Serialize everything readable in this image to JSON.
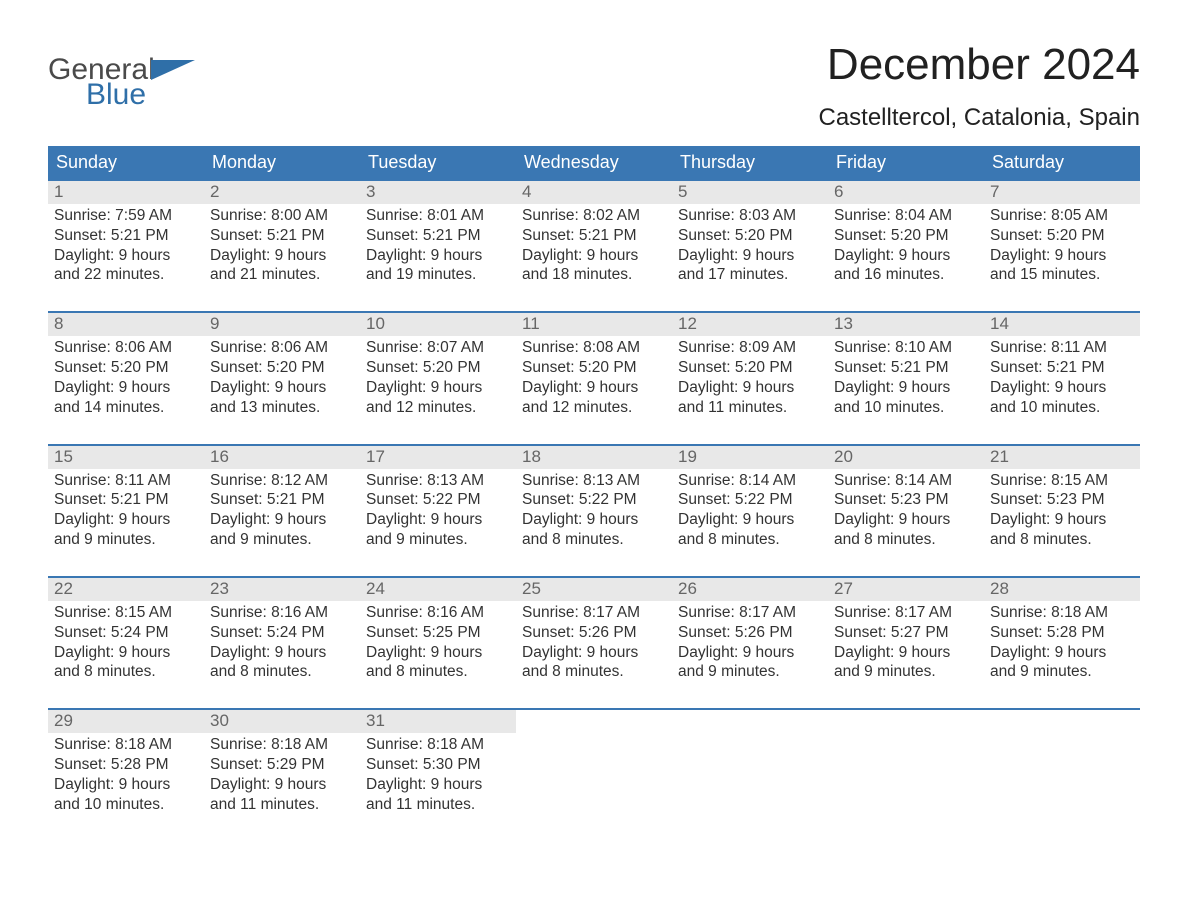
{
  "logo": {
    "general": "General",
    "blue": "Blue",
    "accent_color": "#2f6fa8"
  },
  "title": "December 2024",
  "location": "Castelltercol, Catalonia, Spain",
  "header_bg": "#3a77b3",
  "daynum_bg": "#e8e8e8",
  "text_color": "#333333",
  "border_color": "#3a77b3",
  "weekdays": [
    "Sunday",
    "Monday",
    "Tuesday",
    "Wednesday",
    "Thursday",
    "Friday",
    "Saturday"
  ],
  "weeks": [
    [
      {
        "n": "1",
        "sunrise": "Sunrise: 7:59 AM",
        "sunset": "Sunset: 5:21 PM",
        "d1": "Daylight: 9 hours",
        "d2": "and 22 minutes."
      },
      {
        "n": "2",
        "sunrise": "Sunrise: 8:00 AM",
        "sunset": "Sunset: 5:21 PM",
        "d1": "Daylight: 9 hours",
        "d2": "and 21 minutes."
      },
      {
        "n": "3",
        "sunrise": "Sunrise: 8:01 AM",
        "sunset": "Sunset: 5:21 PM",
        "d1": "Daylight: 9 hours",
        "d2": "and 19 minutes."
      },
      {
        "n": "4",
        "sunrise": "Sunrise: 8:02 AM",
        "sunset": "Sunset: 5:21 PM",
        "d1": "Daylight: 9 hours",
        "d2": "and 18 minutes."
      },
      {
        "n": "5",
        "sunrise": "Sunrise: 8:03 AM",
        "sunset": "Sunset: 5:20 PM",
        "d1": "Daylight: 9 hours",
        "d2": "and 17 minutes."
      },
      {
        "n": "6",
        "sunrise": "Sunrise: 8:04 AM",
        "sunset": "Sunset: 5:20 PM",
        "d1": "Daylight: 9 hours",
        "d2": "and 16 minutes."
      },
      {
        "n": "7",
        "sunrise": "Sunrise: 8:05 AM",
        "sunset": "Sunset: 5:20 PM",
        "d1": "Daylight: 9 hours",
        "d2": "and 15 minutes."
      }
    ],
    [
      {
        "n": "8",
        "sunrise": "Sunrise: 8:06 AM",
        "sunset": "Sunset: 5:20 PM",
        "d1": "Daylight: 9 hours",
        "d2": "and 14 minutes."
      },
      {
        "n": "9",
        "sunrise": "Sunrise: 8:06 AM",
        "sunset": "Sunset: 5:20 PM",
        "d1": "Daylight: 9 hours",
        "d2": "and 13 minutes."
      },
      {
        "n": "10",
        "sunrise": "Sunrise: 8:07 AM",
        "sunset": "Sunset: 5:20 PM",
        "d1": "Daylight: 9 hours",
        "d2": "and 12 minutes."
      },
      {
        "n": "11",
        "sunrise": "Sunrise: 8:08 AM",
        "sunset": "Sunset: 5:20 PM",
        "d1": "Daylight: 9 hours",
        "d2": "and 12 minutes."
      },
      {
        "n": "12",
        "sunrise": "Sunrise: 8:09 AM",
        "sunset": "Sunset: 5:20 PM",
        "d1": "Daylight: 9 hours",
        "d2": "and 11 minutes."
      },
      {
        "n": "13",
        "sunrise": "Sunrise: 8:10 AM",
        "sunset": "Sunset: 5:21 PM",
        "d1": "Daylight: 9 hours",
        "d2": "and 10 minutes."
      },
      {
        "n": "14",
        "sunrise": "Sunrise: 8:11 AM",
        "sunset": "Sunset: 5:21 PM",
        "d1": "Daylight: 9 hours",
        "d2": "and 10 minutes."
      }
    ],
    [
      {
        "n": "15",
        "sunrise": "Sunrise: 8:11 AM",
        "sunset": "Sunset: 5:21 PM",
        "d1": "Daylight: 9 hours",
        "d2": "and 9 minutes."
      },
      {
        "n": "16",
        "sunrise": "Sunrise: 8:12 AM",
        "sunset": "Sunset: 5:21 PM",
        "d1": "Daylight: 9 hours",
        "d2": "and 9 minutes."
      },
      {
        "n": "17",
        "sunrise": "Sunrise: 8:13 AM",
        "sunset": "Sunset: 5:22 PM",
        "d1": "Daylight: 9 hours",
        "d2": "and 9 minutes."
      },
      {
        "n": "18",
        "sunrise": "Sunrise: 8:13 AM",
        "sunset": "Sunset: 5:22 PM",
        "d1": "Daylight: 9 hours",
        "d2": "and 8 minutes."
      },
      {
        "n": "19",
        "sunrise": "Sunrise: 8:14 AM",
        "sunset": "Sunset: 5:22 PM",
        "d1": "Daylight: 9 hours",
        "d2": "and 8 minutes."
      },
      {
        "n": "20",
        "sunrise": "Sunrise: 8:14 AM",
        "sunset": "Sunset: 5:23 PM",
        "d1": "Daylight: 9 hours",
        "d2": "and 8 minutes."
      },
      {
        "n": "21",
        "sunrise": "Sunrise: 8:15 AM",
        "sunset": "Sunset: 5:23 PM",
        "d1": "Daylight: 9 hours",
        "d2": "and 8 minutes."
      }
    ],
    [
      {
        "n": "22",
        "sunrise": "Sunrise: 8:15 AM",
        "sunset": "Sunset: 5:24 PM",
        "d1": "Daylight: 9 hours",
        "d2": "and 8 minutes."
      },
      {
        "n": "23",
        "sunrise": "Sunrise: 8:16 AM",
        "sunset": "Sunset: 5:24 PM",
        "d1": "Daylight: 9 hours",
        "d2": "and 8 minutes."
      },
      {
        "n": "24",
        "sunrise": "Sunrise: 8:16 AM",
        "sunset": "Sunset: 5:25 PM",
        "d1": "Daylight: 9 hours",
        "d2": "and 8 minutes."
      },
      {
        "n": "25",
        "sunrise": "Sunrise: 8:17 AM",
        "sunset": "Sunset: 5:26 PM",
        "d1": "Daylight: 9 hours",
        "d2": "and 8 minutes."
      },
      {
        "n": "26",
        "sunrise": "Sunrise: 8:17 AM",
        "sunset": "Sunset: 5:26 PM",
        "d1": "Daylight: 9 hours",
        "d2": "and 9 minutes."
      },
      {
        "n": "27",
        "sunrise": "Sunrise: 8:17 AM",
        "sunset": "Sunset: 5:27 PM",
        "d1": "Daylight: 9 hours",
        "d2": "and 9 minutes."
      },
      {
        "n": "28",
        "sunrise": "Sunrise: 8:18 AM",
        "sunset": "Sunset: 5:28 PM",
        "d1": "Daylight: 9 hours",
        "d2": "and 9 minutes."
      }
    ],
    [
      {
        "n": "29",
        "sunrise": "Sunrise: 8:18 AM",
        "sunset": "Sunset: 5:28 PM",
        "d1": "Daylight: 9 hours",
        "d2": "and 10 minutes."
      },
      {
        "n": "30",
        "sunrise": "Sunrise: 8:18 AM",
        "sunset": "Sunset: 5:29 PM",
        "d1": "Daylight: 9 hours",
        "d2": "and 11 minutes."
      },
      {
        "n": "31",
        "sunrise": "Sunrise: 8:18 AM",
        "sunset": "Sunset: 5:30 PM",
        "d1": "Daylight: 9 hours",
        "d2": "and 11 minutes."
      },
      {
        "empty": true
      },
      {
        "empty": true
      },
      {
        "empty": true
      },
      {
        "empty": true
      }
    ]
  ]
}
